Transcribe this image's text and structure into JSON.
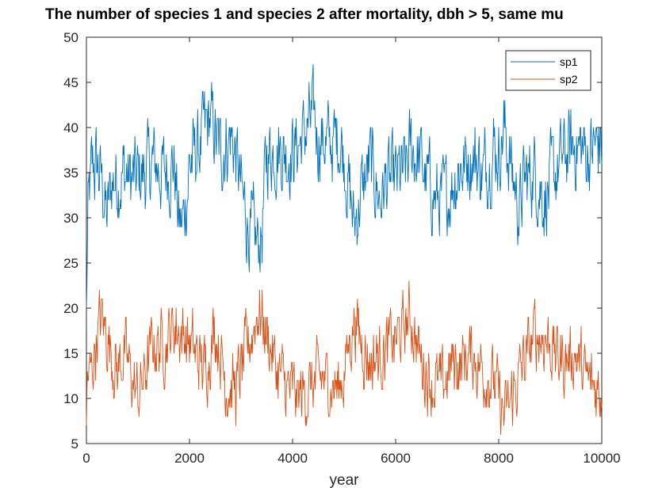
{
  "chart_data": {
    "type": "line",
    "title": "The number of species 1 and species 2 after mortality, dbh > 5, same mu",
    "xlabel": "year",
    "ylabel": "",
    "xlim": [
      0,
      10000
    ],
    "ylim": [
      5,
      50
    ],
    "xticks": [
      0,
      2000,
      4000,
      6000,
      8000,
      10000
    ],
    "yticks": [
      5,
      10,
      15,
      20,
      25,
      30,
      35,
      40,
      45,
      50
    ],
    "grid": false,
    "legend": "top-right",
    "series": [
      {
        "name": "sp1",
        "color": "#0072BD",
        "anchors": [
          [
            0,
            20
          ],
          [
            30,
            30
          ],
          [
            100,
            35
          ],
          [
            200,
            36
          ],
          [
            300,
            34
          ],
          [
            400,
            30
          ],
          [
            500,
            34
          ],
          [
            700,
            35
          ],
          [
            900,
            34
          ],
          [
            1100,
            35
          ],
          [
            1300,
            36
          ],
          [
            1500,
            35
          ],
          [
            1700,
            36
          ],
          [
            1800,
            29
          ],
          [
            1900,
            30
          ],
          [
            2000,
            36
          ],
          [
            2200,
            38
          ],
          [
            2400,
            41
          ],
          [
            2500,
            39
          ],
          [
            2600,
            37
          ],
          [
            2800,
            39
          ],
          [
            2900,
            37
          ],
          [
            3000,
            33
          ],
          [
            3100,
            30
          ],
          [
            3200,
            28
          ],
          [
            3300,
            27
          ],
          [
            3400,
            28
          ],
          [
            3500,
            37
          ],
          [
            3700,
            38
          ],
          [
            3900,
            37
          ],
          [
            4100,
            38
          ],
          [
            4300,
            40
          ],
          [
            4400,
            41
          ],
          [
            4500,
            39
          ],
          [
            4700,
            38
          ],
          [
            4900,
            39
          ],
          [
            5000,
            37
          ],
          [
            5100,
            33
          ],
          [
            5200,
            29
          ],
          [
            5300,
            32
          ],
          [
            5500,
            36
          ],
          [
            5700,
            32
          ],
          [
            5800,
            34
          ],
          [
            6000,
            34
          ],
          [
            6200,
            35
          ],
          [
            6300,
            38
          ],
          [
            6500,
            36
          ],
          [
            6600,
            34
          ],
          [
            6800,
            32
          ],
          [
            7000,
            32
          ],
          [
            7100,
            34
          ],
          [
            7300,
            36
          ],
          [
            7500,
            37
          ],
          [
            7700,
            35
          ],
          [
            7900,
            38
          ],
          [
            8000,
            37
          ],
          [
            8100,
            40
          ],
          [
            8300,
            34
          ],
          [
            8400,
            31
          ],
          [
            8500,
            34
          ],
          [
            8700,
            35
          ],
          [
            8900,
            32
          ],
          [
            9100,
            35
          ],
          [
            9300,
            37
          ],
          [
            9500,
            38
          ],
          [
            9700,
            37
          ],
          [
            9900,
            38
          ],
          [
            10000,
            38
          ]
        ],
        "noise": 3.6,
        "range": [
          23,
          48
        ]
      },
      {
        "name": "sp2",
        "color": "#D95319",
        "anchors": [
          [
            0,
            7
          ],
          [
            20,
            12
          ],
          [
            100,
            13
          ],
          [
            200,
            17
          ],
          [
            300,
            19
          ],
          [
            400,
            17
          ],
          [
            500,
            15
          ],
          [
            600,
            13
          ],
          [
            700,
            15
          ],
          [
            800,
            14
          ],
          [
            900,
            12
          ],
          [
            1000,
            10
          ],
          [
            1100,
            12
          ],
          [
            1300,
            16
          ],
          [
            1500,
            16
          ],
          [
            1700,
            18
          ],
          [
            1900,
            17
          ],
          [
            2100,
            15
          ],
          [
            2300,
            13
          ],
          [
            2500,
            18
          ],
          [
            2600,
            15
          ],
          [
            2700,
            12
          ],
          [
            2900,
            11
          ],
          [
            3000,
            13
          ],
          [
            3200,
            17
          ],
          [
            3350,
            20
          ],
          [
            3500,
            17
          ],
          [
            3700,
            13
          ],
          [
            3900,
            11
          ],
          [
            4100,
            10
          ],
          [
            4300,
            11
          ],
          [
            4500,
            12
          ],
          [
            4700,
            12
          ],
          [
            4900,
            11
          ],
          [
            5000,
            13
          ],
          [
            5200,
            19
          ],
          [
            5300,
            17
          ],
          [
            5500,
            14
          ],
          [
            5700,
            15
          ],
          [
            5900,
            16
          ],
          [
            6100,
            17
          ],
          [
            6300,
            19
          ],
          [
            6500,
            14
          ],
          [
            6700,
            12
          ],
          [
            6900,
            11
          ],
          [
            7100,
            14
          ],
          [
            7300,
            14
          ],
          [
            7500,
            15
          ],
          [
            7700,
            13
          ],
          [
            7900,
            12
          ],
          [
            8000,
            10
          ],
          [
            8100,
            8
          ],
          [
            8200,
            9
          ],
          [
            8300,
            11
          ],
          [
            8500,
            14
          ],
          [
            8700,
            17
          ],
          [
            8900,
            17
          ],
          [
            9100,
            15
          ],
          [
            9300,
            14
          ],
          [
            9500,
            15
          ],
          [
            9700,
            12
          ],
          [
            9900,
            11
          ],
          [
            10000,
            11
          ]
        ],
        "noise": 3.0,
        "range": [
          6,
          26
        ]
      }
    ]
  }
}
